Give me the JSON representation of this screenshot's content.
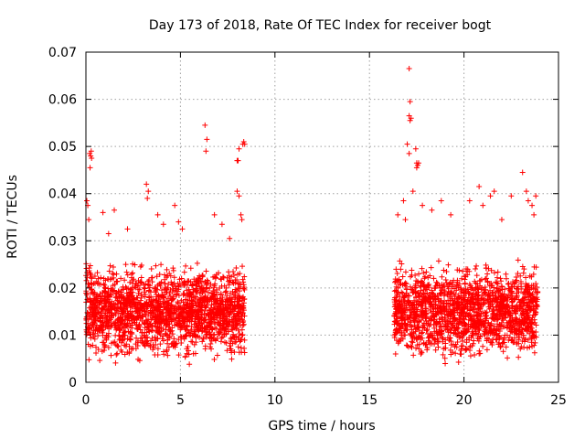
{
  "chart_data": {
    "type": "scatter",
    "title": "Day 173 of 2018, Rate Of TEC Index for receiver bogt",
    "xlabel": "GPS time / hours",
    "ylabel": "ROTI / TECUs",
    "xlim": [
      0,
      25
    ],
    "ylim": [
      0,
      0.07
    ],
    "x_ticks": [
      0,
      5,
      10,
      15,
      20,
      25
    ],
    "x_tick_labels": [
      "0",
      "5",
      "10",
      "15",
      "20",
      "25"
    ],
    "y_ticks": [
      0,
      0.01,
      0.02,
      0.03,
      0.04,
      0.05,
      0.06,
      0.07
    ],
    "y_tick_labels": [
      "0",
      "0.01",
      "0.02",
      "0.03",
      "0.04",
      "0.05",
      "0.06",
      "0.07"
    ],
    "grid": true,
    "marker": "+",
    "series": [
      {
        "name": "ROTI",
        "color": "#ff0000",
        "bulk": [
          {
            "x_range": [
              0.0,
              8.4
            ],
            "y_range": [
              0.003,
              0.027
            ],
            "count": 1900
          },
          {
            "x_range": [
              16.3,
              23.9
            ],
            "y_range": [
              0.003,
              0.027
            ],
            "count": 1700
          }
        ],
        "points": [
          [
            0.2,
            0.0485
          ],
          [
            0.25,
            0.048
          ],
          [
            0.3,
            0.0475
          ],
          [
            0.28,
            0.049
          ],
          [
            0.22,
            0.0455
          ],
          [
            0.05,
            0.0385
          ],
          [
            0.1,
            0.0375
          ],
          [
            0.15,
            0.0345
          ],
          [
            0.9,
            0.036
          ],
          [
            1.2,
            0.0315
          ],
          [
            1.5,
            0.0365
          ],
          [
            2.2,
            0.0325
          ],
          [
            3.2,
            0.042
          ],
          [
            3.3,
            0.0405
          ],
          [
            3.25,
            0.039
          ],
          [
            3.8,
            0.0355
          ],
          [
            4.1,
            0.0335
          ],
          [
            4.7,
            0.0375
          ],
          [
            4.9,
            0.034
          ],
          [
            5.1,
            0.0325
          ],
          [
            6.3,
            0.0545
          ],
          [
            6.4,
            0.0515
          ],
          [
            6.35,
            0.049
          ],
          [
            6.8,
            0.0355
          ],
          [
            7.2,
            0.0335
          ],
          [
            7.6,
            0.0305
          ],
          [
            8.0,
            0.047
          ],
          [
            8.05,
            0.047
          ],
          [
            8.1,
            0.0495
          ],
          [
            8.3,
            0.0505
          ],
          [
            8.35,
            0.051
          ],
          [
            8.4,
            0.0505
          ],
          [
            8.0,
            0.0405
          ],
          [
            8.1,
            0.0395
          ],
          [
            8.2,
            0.0355
          ],
          [
            8.25,
            0.0345
          ],
          [
            16.5,
            0.0355
          ],
          [
            16.8,
            0.0385
          ],
          [
            16.9,
            0.0345
          ],
          [
            17.1,
            0.0665
          ],
          [
            17.15,
            0.0595
          ],
          [
            17.1,
            0.0565
          ],
          [
            17.15,
            0.0555
          ],
          [
            17.2,
            0.056
          ],
          [
            17.0,
            0.0505
          ],
          [
            17.1,
            0.0485
          ],
          [
            17.45,
            0.0495
          ],
          [
            17.5,
            0.0465
          ],
          [
            17.5,
            0.0455
          ],
          [
            17.55,
            0.046
          ],
          [
            17.6,
            0.0465
          ],
          [
            17.3,
            0.0405
          ],
          [
            17.8,
            0.0375
          ],
          [
            18.3,
            0.0365
          ],
          [
            18.8,
            0.0385
          ],
          [
            19.3,
            0.0355
          ],
          [
            20.3,
            0.0385
          ],
          [
            20.8,
            0.0415
          ],
          [
            21.0,
            0.0375
          ],
          [
            21.4,
            0.0395
          ],
          [
            21.6,
            0.0405
          ],
          [
            22.0,
            0.0345
          ],
          [
            22.5,
            0.0395
          ],
          [
            23.1,
            0.0445
          ],
          [
            23.3,
            0.0405
          ],
          [
            23.4,
            0.0385
          ],
          [
            23.6,
            0.0375
          ],
          [
            23.8,
            0.0395
          ],
          [
            23.7,
            0.0355
          ]
        ]
      }
    ]
  }
}
